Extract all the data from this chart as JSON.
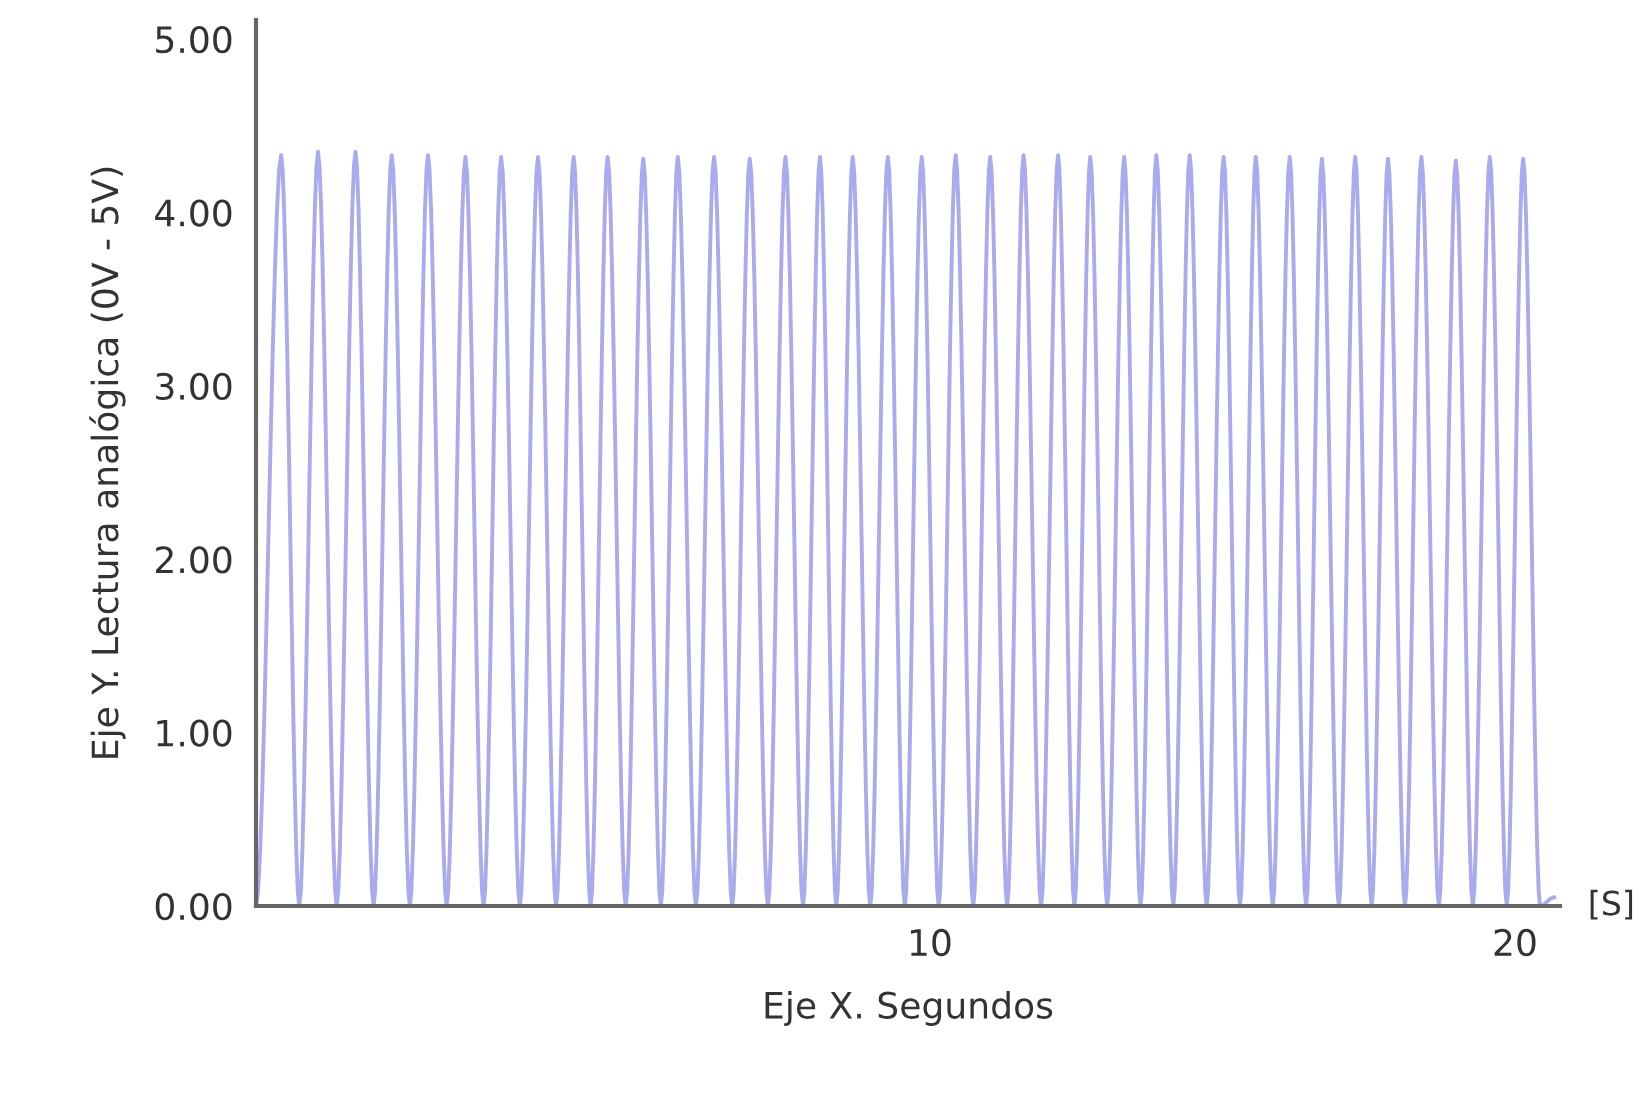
{
  "chart_data": {
    "type": "line",
    "xlabel": "Eje X. Segundos",
    "ylabel": "Eje Y. Lectura analógica (0V - 5V)",
    "annotations": [
      "[S]"
    ],
    "series": [
      {
        "color": "#aaaaee",
        "x": [
          -1.52,
          -1.09,
          -0.78,
          -0.46,
          -0.14,
          0.18,
          0.49,
          0.8,
          1.11,
          1.42,
          1.74,
          2.06,
          2.37,
          2.67,
          2.99,
          3.3,
          3.61,
          3.91,
          4.2,
          4.49,
          4.8,
          5.1,
          5.4,
          5.69,
          6.0,
          6.31,
          6.62,
          6.92,
          7.23,
          7.53,
          7.83,
          8.12,
          8.4,
          8.68,
          8.98,
          9.28,
          9.57,
          9.86,
          10.15,
          10.44,
          10.74,
          11.03,
          11.32,
          11.6,
          11.9,
          12.19,
          12.47,
          12.74,
          13.03,
          13.32,
          13.6,
          13.87,
          14.16,
          14.44,
          14.73,
          15.02,
          15.3,
          15.57,
          15.86,
          16.15,
          16.43,
          16.7,
          16.99,
          17.27,
          17.55,
          17.83,
          18.12,
          18.4,
          18.7,
          18.99,
          19.28,
          19.57,
          19.86,
          20.14,
          20.43,
          20.67
        ],
        "values": [
          0,
          4.33,
          0,
          4.35,
          0,
          4.35,
          0,
          4.33,
          0,
          4.33,
          0,
          4.32,
          0,
          4.32,
          0,
          4.32,
          0,
          4.32,
          0,
          4.32,
          0,
          4.31,
          0,
          4.32,
          0,
          4.32,
          0,
          4.31,
          0,
          4.32,
          0,
          4.32,
          0,
          4.32,
          0,
          4.32,
          0,
          4.32,
          0,
          4.33,
          0,
          4.32,
          0,
          4.33,
          0,
          4.33,
          0,
          4.32,
          0,
          4.32,
          0,
          4.33,
          0,
          4.33,
          0,
          4.32,
          0,
          4.32,
          0,
          4.32,
          0,
          4.31,
          0,
          4.32,
          0,
          4.31,
          0,
          4.32,
          0,
          4.3,
          0,
          4.32,
          0,
          4.31,
          0,
          0.05
        ]
      }
    ],
    "xlim": [
      -1.52,
      20.77
    ],
    "ylim": [
      0,
      5.11
    ],
    "xticks": [
      10,
      20
    ],
    "yticks": [
      {
        "value": 0,
        "label": "0.00"
      },
      {
        "value": 1,
        "label": "1.00"
      },
      {
        "value": 2,
        "label": "2.00"
      },
      {
        "value": 3,
        "label": "3.00"
      },
      {
        "value": 4,
        "label": "4.00"
      },
      {
        "value": 5,
        "label": "5.00"
      }
    ],
    "grid": false,
    "legend": false,
    "marker": "none",
    "line_style": "solid"
  }
}
